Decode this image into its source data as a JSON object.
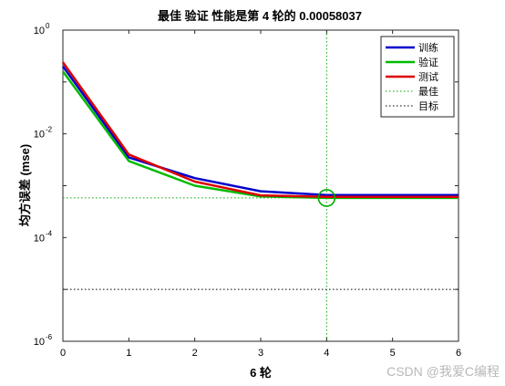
{
  "chart_data": {
    "type": "line",
    "title": "最佳 验证 性能是第 4 轮的 0.00058037",
    "xlabel": "6 轮",
    "ylabel": "均方误差 (mse)",
    "xlim": [
      0,
      6
    ],
    "ylim": [
      1e-06,
      1
    ],
    "yscale": "log",
    "grid": false,
    "legend_position": "top-right",
    "x_ticks": [
      "0",
      "1",
      "2",
      "3",
      "4",
      "5",
      "6"
    ],
    "y_ticks": [
      {
        "base": "10",
        "exp": "0",
        "value": 1
      },
      {
        "base": "10",
        "exp": "-2",
        "value": 0.01
      },
      {
        "base": "10",
        "exp": "-4",
        "value": 0.0001
      },
      {
        "base": "10",
        "exp": "-6",
        "value": 1e-06
      }
    ],
    "x": [
      0,
      1,
      2,
      3,
      4,
      5,
      6
    ],
    "series": [
      {
        "name": "训练",
        "color": "#0000cc",
        "values": [
          0.2,
          0.0035,
          0.0014,
          0.00078,
          0.00066,
          0.00066,
          0.00066
        ]
      },
      {
        "name": "验证",
        "color": "#00bb00",
        "values": [
          0.16,
          0.003,
          0.001,
          0.00062,
          0.00058037,
          0.00058,
          0.00058
        ]
      },
      {
        "name": "测试",
        "color": "#dd0000",
        "values": [
          0.24,
          0.004,
          0.0012,
          0.00065,
          0.00061,
          0.00061,
          0.00061
        ]
      }
    ],
    "reference_lines": [
      {
        "name": "最佳",
        "color": "#00aa00",
        "style": "dotted",
        "x": 4,
        "y": 0.00058037
      },
      {
        "name": "目标",
        "color": "#000000",
        "style": "dotted",
        "y": 1e-05
      }
    ],
    "best_marker": {
      "x": 4,
      "y": 0.00058037,
      "color": "#00aa00"
    }
  },
  "watermark": "CSDN @我爱C编程"
}
